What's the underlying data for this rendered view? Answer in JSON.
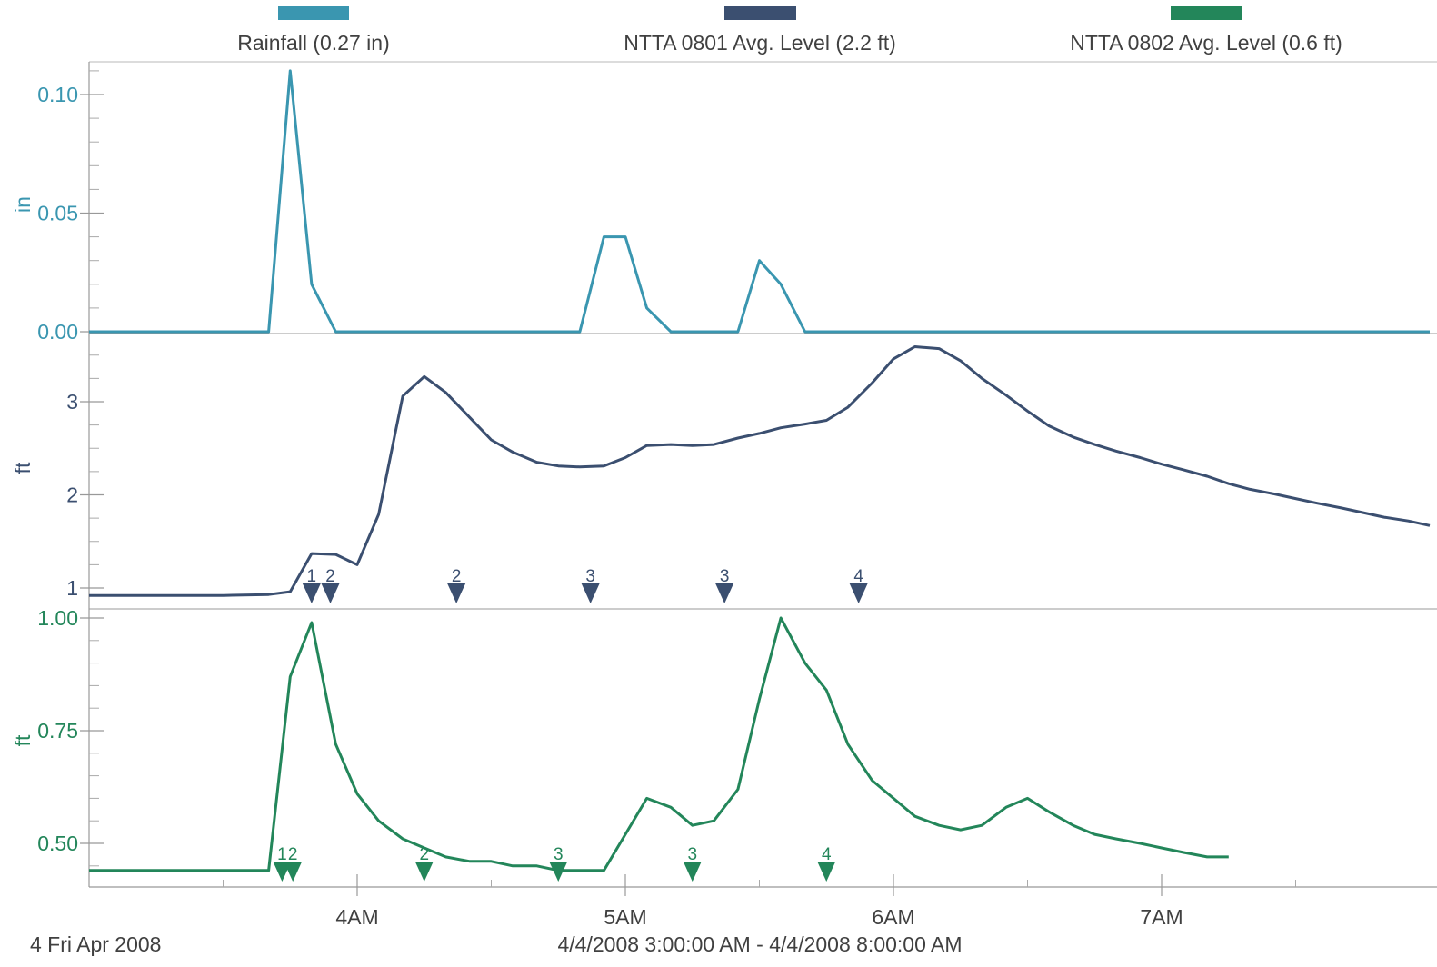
{
  "chart_data": {
    "type": "line",
    "legend": [
      {
        "label": "Rainfall (0.27 in)",
        "color": "#3a96b0"
      },
      {
        "label": "NTTA 0801 Avg. Level (2.2 ft)",
        "color": "#3b4f70"
      },
      {
        "label": "NTTA 0802 Avg. Level (0.6 ft)",
        "color": "#23865a"
      }
    ],
    "x_axis": {
      "range_hours": [
        3.0,
        8.0
      ],
      "ticks": [
        {
          "label": "4AM",
          "value": 4
        },
        {
          "label": "5AM",
          "value": 5
        },
        {
          "label": "6AM",
          "value": 6
        },
        {
          "label": "7AM",
          "value": 7
        }
      ],
      "date_label": "4 Fri Apr 2008",
      "range_label": "4/4/2008 3:00:00 AM - 4/4/2008 8:00:00 AM"
    },
    "panels": [
      {
        "name": "Rainfall (0.27 in)",
        "ylabel": "in",
        "color": "#3a96b0",
        "ylim": [
          -0.002,
          0.114
        ],
        "ticks": [
          {
            "label": "0.00",
            "value": 0.0
          },
          {
            "label": "0.05",
            "value": 0.05
          },
          {
            "label": "0.10",
            "value": 0.1
          }
        ],
        "x": [
          3.0,
          3.67,
          3.75,
          3.83,
          3.92,
          4.83,
          4.92,
          5.0,
          5.08,
          5.17,
          5.42,
          5.5,
          5.58,
          5.67,
          8.0
        ],
        "y": [
          0.0,
          0.0,
          0.11,
          0.02,
          0.0,
          0.0,
          0.04,
          0.04,
          0.01,
          0.0,
          0.0,
          0.03,
          0.02,
          0.0,
          0.0
        ],
        "markers": []
      },
      {
        "name": "NTTA 0801 Avg. Level (2.2 ft)",
        "ylabel": "ft",
        "color": "#3b4f70",
        "ylim": [
          0.82,
          3.58
        ],
        "ticks": [
          {
            "label": "1",
            "value": 1
          },
          {
            "label": "2",
            "value": 2
          },
          {
            "label": "3",
            "value": 3
          }
        ],
        "x": [
          3.0,
          3.25,
          3.5,
          3.67,
          3.75,
          3.83,
          3.92,
          4.0,
          4.08,
          4.17,
          4.25,
          4.33,
          4.42,
          4.5,
          4.58,
          4.67,
          4.75,
          4.83,
          4.92,
          5.0,
          5.08,
          5.17,
          5.25,
          5.33,
          5.42,
          5.5,
          5.58,
          5.67,
          5.75,
          5.83,
          5.92,
          6.0,
          6.08,
          6.17,
          6.25,
          6.33,
          6.42,
          6.5,
          6.58,
          6.67,
          6.75,
          6.83,
          6.92,
          7.0,
          7.08,
          7.17,
          7.25,
          7.33,
          7.42,
          7.5,
          7.58,
          7.67,
          7.75,
          7.83,
          7.92,
          8.0
        ],
        "y": [
          0.92,
          0.92,
          0.92,
          0.93,
          0.96,
          1.37,
          1.36,
          1.25,
          1.79,
          3.06,
          3.27,
          3.1,
          2.83,
          2.59,
          2.46,
          2.35,
          2.31,
          2.3,
          2.31,
          2.4,
          2.53,
          2.54,
          2.53,
          2.54,
          2.61,
          2.66,
          2.72,
          2.76,
          2.8,
          2.94,
          3.2,
          3.46,
          3.59,
          3.57,
          3.44,
          3.25,
          3.07,
          2.9,
          2.74,
          2.62,
          2.54,
          2.47,
          2.4,
          2.33,
          2.27,
          2.2,
          2.12,
          2.06,
          2.01,
          1.96,
          1.91,
          1.86,
          1.81,
          1.76,
          1.72,
          1.67
        ],
        "markers": [
          {
            "label": "1",
            "x": 3.83
          },
          {
            "label": "2",
            "x": 3.9
          },
          {
            "label": "2",
            "x": 4.37
          },
          {
            "label": "3",
            "x": 4.87
          },
          {
            "label": "3",
            "x": 5.37
          },
          {
            "label": "4",
            "x": 5.87
          }
        ]
      },
      {
        "name": "NTTA 0802 Avg. Level (0.6 ft)",
        "ylabel": "ft",
        "color": "#23865a",
        "ylim": [
          0.41,
          1.0
        ],
        "ticks": [
          {
            "label": "0.50",
            "value": 0.5
          },
          {
            "label": "0.75",
            "value": 0.75
          },
          {
            "label": "1.00",
            "value": 1.0
          }
        ],
        "x": [
          3.0,
          3.25,
          3.5,
          3.58,
          3.67,
          3.75,
          3.83,
          3.92,
          4.0,
          4.08,
          4.17,
          4.25,
          4.33,
          4.42,
          4.5,
          4.58,
          4.67,
          4.75,
          4.83,
          4.92,
          5.0,
          5.08,
          5.17,
          5.25,
          5.33,
          5.42,
          5.5,
          5.58,
          5.67,
          5.75,
          5.83,
          5.92,
          6.0,
          6.08,
          6.17,
          6.25,
          6.33,
          6.42,
          6.5,
          6.58,
          6.67,
          6.75,
          6.83,
          6.92,
          7.0,
          7.08,
          7.17,
          7.25
        ],
        "y": [
          0.44,
          0.44,
          0.44,
          0.44,
          0.44,
          0.87,
          0.99,
          0.72,
          0.61,
          0.55,
          0.51,
          0.49,
          0.47,
          0.46,
          0.46,
          0.45,
          0.45,
          0.44,
          0.44,
          0.44,
          0.52,
          0.6,
          0.58,
          0.54,
          0.55,
          0.62,
          0.82,
          1.0,
          0.9,
          0.84,
          0.72,
          0.64,
          0.6,
          0.56,
          0.54,
          0.53,
          0.54,
          0.58,
          0.6,
          0.57,
          0.54,
          0.52,
          0.51,
          0.5,
          0.49,
          0.48,
          0.47,
          0.47
        ],
        "markers": [
          {
            "label": "1",
            "x": 3.72
          },
          {
            "label": "2",
            "x": 3.76
          },
          {
            "label": "2",
            "x": 4.25
          },
          {
            "label": "3",
            "x": 4.75
          },
          {
            "label": "3",
            "x": 5.25
          },
          {
            "label": "4",
            "x": 5.75
          }
        ]
      }
    ]
  }
}
